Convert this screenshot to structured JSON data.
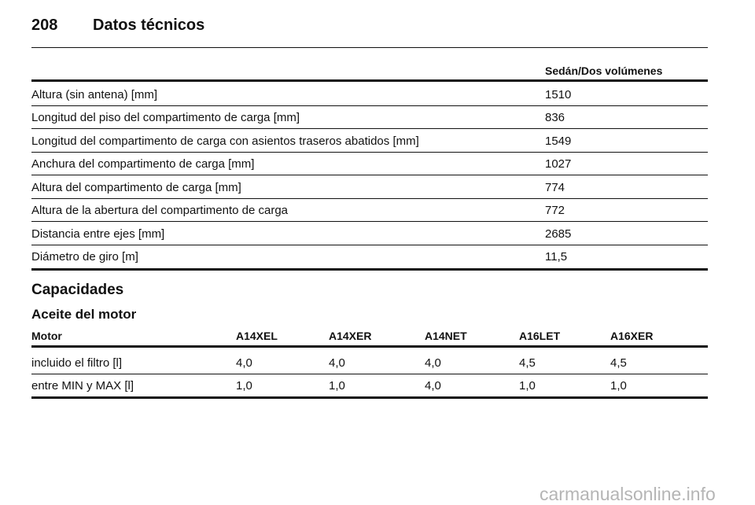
{
  "header": {
    "page_number": "208",
    "title": "Datos técnicos"
  },
  "dimensions_table": {
    "column_header": "Sedán/Dos volúmenes",
    "rows": [
      [
        "Altura (sin antena) [mm]",
        "1510"
      ],
      [
        "Longitud del piso del compartimento de carga [mm]",
        "836"
      ],
      [
        "Longitud del compartimento de carga con asientos traseros abatidos [mm]",
        "1549"
      ],
      [
        "Anchura del compartimento de carga [mm]",
        "1027"
      ],
      [
        "Altura del compartimento de carga [mm]",
        "774"
      ],
      [
        "Altura de la abertura del compartimento de carga",
        "772"
      ],
      [
        "Distancia entre ejes [mm]",
        "2685"
      ],
      [
        "Diámetro de giro [m]",
        "11,5"
      ]
    ]
  },
  "section_title": "Capacidades",
  "subsection_title": "Aceite del motor",
  "oil_table": {
    "columns": [
      "Motor",
      "A14XEL",
      "A14XER",
      "A14NET",
      "A16LET",
      "A16XER"
    ],
    "rows": [
      [
        "incluido el filtro [l]",
        "4,0",
        "4,0",
        "4,0",
        "4,5",
        "4,5"
      ],
      [
        "entre MIN y MAX [l]",
        "1,0",
        "1,0",
        "4,0",
        "1,0",
        "1,0"
      ]
    ]
  },
  "watermark": "carmanualsonline.info"
}
